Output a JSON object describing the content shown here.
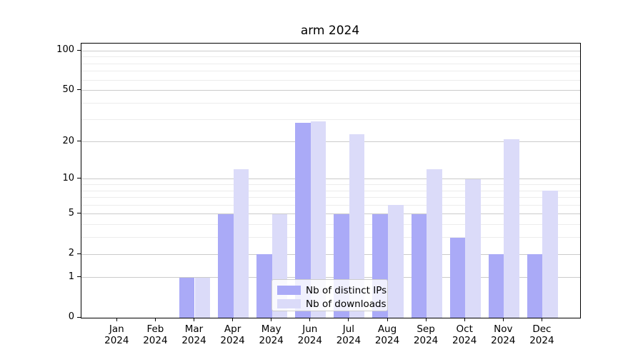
{
  "title": "arm 2024",
  "chart_data": {
    "type": "bar",
    "title": "arm 2024",
    "categories": [
      {
        "month": "Jan",
        "year": "2024"
      },
      {
        "month": "Feb",
        "year": "2024"
      },
      {
        "month": "Mar",
        "year": "2024"
      },
      {
        "month": "Apr",
        "year": "2024"
      },
      {
        "month": "May",
        "year": "2024"
      },
      {
        "month": "Jun",
        "year": "2024"
      },
      {
        "month": "Jul",
        "year": "2024"
      },
      {
        "month": "Aug",
        "year": "2024"
      },
      {
        "month": "Sep",
        "year": "2024"
      },
      {
        "month": "Oct",
        "year": "2024"
      },
      {
        "month": "Nov",
        "year": "2024"
      },
      {
        "month": "Dec",
        "year": "2024"
      }
    ],
    "series": [
      {
        "name": "Nb of distinct IPs",
        "color": "#aaaaf7",
        "values": [
          0,
          0,
          1,
          5,
          2,
          28,
          5,
          5,
          5,
          3,
          2,
          2
        ]
      },
      {
        "name": "Nb of downloads",
        "color": "#dbdbf9",
        "values": [
          0,
          0,
          1,
          12,
          5,
          29,
          23,
          6,
          12,
          10,
          21,
          8
        ]
      }
    ],
    "xlabel": "",
    "ylabel": "",
    "yscale": "log1p",
    "ylim": [
      0,
      113
    ],
    "yticks": [
      0,
      1,
      2,
      5,
      10,
      20,
      50,
      100
    ],
    "ytick_labels": [
      "0",
      "1",
      "2",
      "5",
      "10",
      "20",
      "50",
      "100"
    ],
    "minor_gridlines": [
      3,
      4,
      6,
      7,
      8,
      9,
      30,
      40,
      60,
      70,
      80,
      90
    ],
    "grid": true,
    "legend_position": "lower center"
  }
}
